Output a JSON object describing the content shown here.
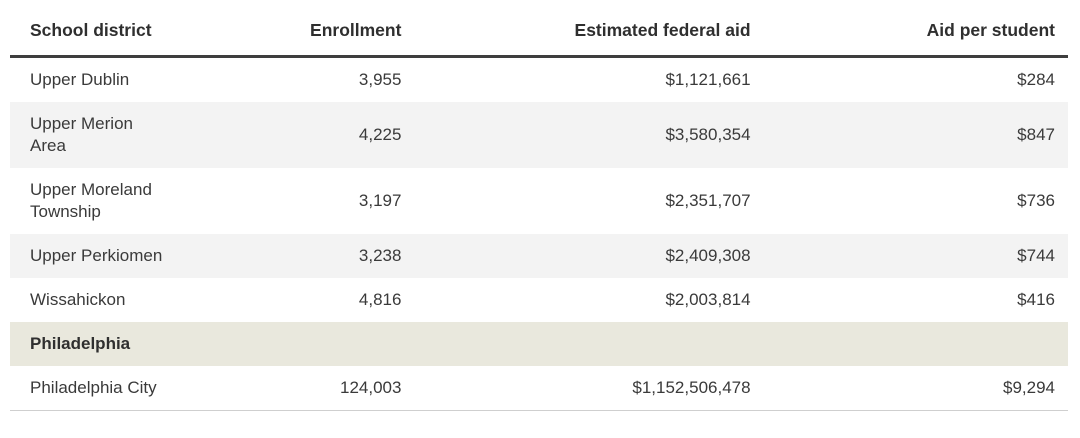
{
  "theme": {
    "text_color": "#3a3a3a",
    "header_text_color": "#2f2f2f",
    "stripe_color": "#f3f3f3",
    "section_row_color": "#e9e8dd",
    "header_rule_color": "#3e3e3e",
    "bottom_rule_color": "#cfcfcf",
    "background_color": "#ffffff"
  },
  "table": {
    "columns": [
      {
        "label": "School district",
        "align": "left"
      },
      {
        "label": "Enrollment",
        "align": "right"
      },
      {
        "label": "Estimated federal aid",
        "align": "right"
      },
      {
        "label": "Aid per student",
        "align": "right"
      }
    ],
    "rows": [
      {
        "district": "Upper Dublin",
        "enrollment": "3,955",
        "federal_aid": "$1,121,661",
        "aid_per_student": "$284"
      },
      {
        "district": "Upper Merion Area",
        "enrollment": "4,225",
        "federal_aid": "$3,580,354",
        "aid_per_student": "$847"
      },
      {
        "district": "Upper Moreland Township",
        "enrollment": "3,197",
        "federal_aid": "$2,351,707",
        "aid_per_student": "$736"
      },
      {
        "district": "Upper Perkiomen",
        "enrollment": "3,238",
        "federal_aid": "$2,409,308",
        "aid_per_student": "$744"
      },
      {
        "district": "Wissahickon",
        "enrollment": "4,816",
        "federal_aid": "$2,003,814",
        "aid_per_student": "$416"
      }
    ],
    "section": {
      "label": "Philadelphia"
    },
    "section_rows": [
      {
        "district": "Philadelphia City",
        "enrollment": "124,003",
        "federal_aid": "$1,152,506,478",
        "aid_per_student": "$9,294"
      }
    ]
  }
}
